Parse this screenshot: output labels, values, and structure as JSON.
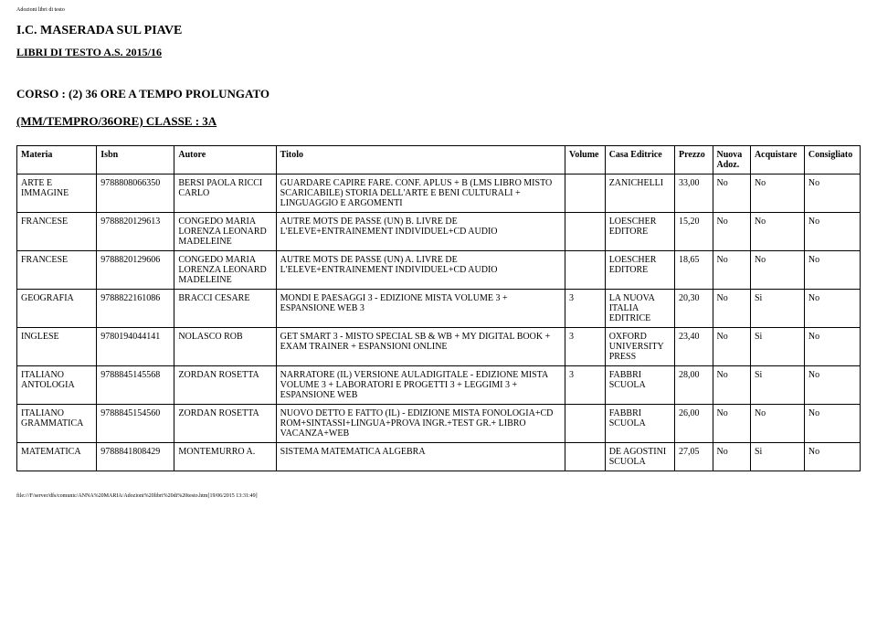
{
  "meta": {
    "tiny_header": "Adozioni libri di testo",
    "school_title": "I.C. MASERADA SUL PIAVE",
    "subtitle": "LIBRI DI TESTO A.S. 2015/16",
    "course_line": "CORSO : (2) 36 ORE A TEMPO PROLUNGATO",
    "class_line": "(MM/TEMPRO/36ORE) CLASSE : 3A",
    "footer_path": "file:///F/server/dfs/comunic/ANNA%20MARIA/Adozioni%20libri%20di%20testo.htm[19/06/2015   13:31:49]"
  },
  "columns": [
    "Materia",
    "Isbn",
    "Autore",
    "Titolo",
    "Volume",
    "Casa Editrice",
    "Prezzo",
    "Nuova Adoz.",
    "Acquistare",
    "Consigliato"
  ],
  "rows": [
    {
      "materia": "ARTE E IMMAGINE",
      "isbn": "9788808066350",
      "autore": "BERSI PAOLA RICCI CARLO",
      "titolo": "GUARDARE CAPIRE FARE. CONF. APLUS + B (LMS LIBRO MISTO SCARICABILE) STORIA DELL'ARTE E BENI CULTURALI + LINGUAGGIO E ARGOMENTI",
      "volume": "",
      "casa": "ZANICHELLI",
      "prezzo": "33,00",
      "nuova": "No",
      "acq": "No",
      "cons": "No"
    },
    {
      "materia": "FRANCESE",
      "isbn": "9788820129613",
      "autore": "CONGEDO MARIA LORENZA LEONARD MADELEINE",
      "titolo": "AUTRE MOTS DE PASSE (UN) B. LIVRE DE L'ELEVE+ENTRAINEMENT INDIVIDUEL+CD AUDIO",
      "volume": "",
      "casa": "LOESCHER EDITORE",
      "prezzo": "15,20",
      "nuova": "No",
      "acq": "No",
      "cons": "No"
    },
    {
      "materia": "FRANCESE",
      "isbn": "9788820129606",
      "autore": "CONGEDO MARIA LORENZA LEONARD MADELEINE",
      "titolo": "AUTRE MOTS DE PASSE (UN) A. LIVRE DE L'ELEVE+ENTRAINEMENT INDIVIDUEL+CD AUDIO",
      "volume": "",
      "casa": "LOESCHER EDITORE",
      "prezzo": "18,65",
      "nuova": "No",
      "acq": "No",
      "cons": "No"
    },
    {
      "materia": "GEOGRAFIA",
      "isbn": "9788822161086",
      "autore": "BRACCI CESARE",
      "titolo": "MONDI E PAESAGGI 3 - EDIZIONE MISTA VOLUME 3 + ESPANSIONE WEB 3",
      "volume": "3",
      "casa": "LA NUOVA ITALIA EDITRICE",
      "prezzo": "20,30",
      "nuova": "No",
      "acq": "Si",
      "cons": "No"
    },
    {
      "materia": "INGLESE",
      "isbn": "9780194044141",
      "autore": "NOLASCO ROB",
      "titolo": "GET SMART 3 - MISTO SPECIAL SB & WB + MY DIGITAL BOOK + EXAM TRAINER + ESPANSIONI ONLINE",
      "volume": "3",
      "casa": "OXFORD UNIVERSITY PRESS",
      "prezzo": "23,40",
      "nuova": "No",
      "acq": "Si",
      "cons": "No"
    },
    {
      "materia": "ITALIANO ANTOLOGIA",
      "isbn": "9788845145568",
      "autore": "ZORDAN ROSETTA",
      "titolo": "NARRATORE (IL) VERSIONE AULADIGITALE - EDIZIONE MISTA VOLUME 3 + LABORATORI E PROGETTI 3 + LEGGIMI 3 + ESPANSIONE WEB",
      "volume": "3",
      "casa": "FABBRI SCUOLA",
      "prezzo": "28,00",
      "nuova": "No",
      "acq": "Si",
      "cons": "No"
    },
    {
      "materia": "ITALIANO GRAMMATICA",
      "isbn": "9788845154560",
      "autore": "ZORDAN ROSETTA",
      "titolo": "NUOVO DETTO E FATTO (IL) - EDIZIONE MISTA FONOLOGIA+CD ROM+SINTASSI+LINGUA+PROVA INGR.+TEST GR.+ LIBRO VACANZA+WEB",
      "volume": "",
      "casa": "FABBRI SCUOLA",
      "prezzo": "26,00",
      "nuova": "No",
      "acq": "No",
      "cons": "No"
    },
    {
      "materia": "MATEMATICA",
      "isbn": "9788841808429",
      "autore": "MONTEMURRO A.",
      "titolo": "SISTEMA MATEMATICA ALGEBRA",
      "volume": "",
      "casa": "DE AGOSTINI SCUOLA",
      "prezzo": "27,05",
      "nuova": "No",
      "acq": "Si",
      "cons": "No"
    }
  ]
}
